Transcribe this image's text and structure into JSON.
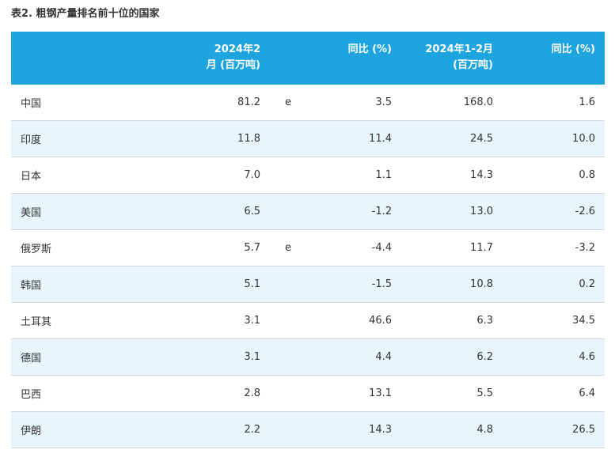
{
  "title": "表2. 粗钢产量排名前十位的国家",
  "table": {
    "header": {
      "feb_line1": "2024年2",
      "feb_line2": "月 (百万吨)",
      "yoy1": "同比 (%)",
      "janfeb_line1": "2024年1-2月",
      "janfeb_line2": "(百万吨)",
      "yoy2": "同比 (%)"
    },
    "rows": [
      {
        "country": "中国",
        "feb": "81.2",
        "flag": "e",
        "yoy1": "3.5",
        "janfeb": "168.0",
        "yoy2": "1.6"
      },
      {
        "country": "印度",
        "feb": "11.8",
        "flag": "",
        "yoy1": "11.4",
        "janfeb": "24.5",
        "yoy2": "10.0"
      },
      {
        "country": "日本",
        "feb": "7.0",
        "flag": "",
        "yoy1": "1.1",
        "janfeb": "14.3",
        "yoy2": "0.8"
      },
      {
        "country": "美国",
        "feb": "6.5",
        "flag": "",
        "yoy1": "-1.2",
        "janfeb": "13.0",
        "yoy2": "-2.6"
      },
      {
        "country": "俄罗斯",
        "feb": "5.7",
        "flag": "e",
        "yoy1": "-4.4",
        "janfeb": "11.7",
        "yoy2": "-3.2"
      },
      {
        "country": "韩国",
        "feb": "5.1",
        "flag": "",
        "yoy1": "-1.5",
        "janfeb": "10.8",
        "yoy2": "0.2"
      },
      {
        "country": "土耳其",
        "feb": "3.1",
        "flag": "",
        "yoy1": "46.6",
        "janfeb": "6.3",
        "yoy2": "34.5"
      },
      {
        "country": "德国",
        "feb": "3.1",
        "flag": "",
        "yoy1": "4.4",
        "janfeb": "6.2",
        "yoy2": "4.6"
      },
      {
        "country": "巴西",
        "feb": "2.8",
        "flag": "",
        "yoy1": "13.1",
        "janfeb": "5.5",
        "yoy2": "6.4"
      },
      {
        "country": "伊朗",
        "feb": "2.2",
        "flag": "",
        "yoy1": "14.3",
        "janfeb": "4.8",
        "yoy2": "26.5"
      }
    ]
  }
}
